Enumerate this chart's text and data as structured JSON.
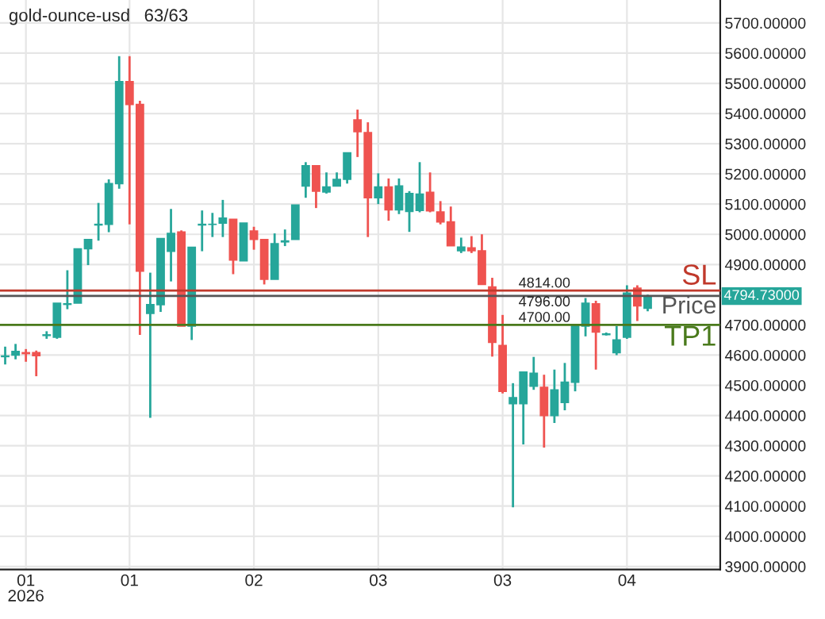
{
  "chart_data": {
    "type": "candlestick",
    "title": "gold-ounce-usd",
    "subtitle": "63/63",
    "categories": [
      null,
      null,
      "01\n2026",
      null,
      null,
      null,
      null,
      null,
      null,
      null,
      null,
      null,
      "01",
      null,
      null,
      null,
      null,
      null,
      null,
      null,
      null,
      null,
      null,
      null,
      "02",
      null,
      null,
      null,
      null,
      null,
      null,
      null,
      null,
      null,
      null,
      null,
      "03",
      null,
      null,
      null,
      null,
      null,
      null,
      null,
      null,
      null,
      null,
      null,
      "03",
      null,
      null,
      null,
      null,
      null,
      null,
      null,
      null,
      null,
      null,
      null,
      "04",
      null,
      null
    ],
    "ohlc": [
      [
        4595,
        4628,
        4569,
        4597
      ],
      [
        4600,
        4637,
        4586,
        4612
      ],
      [
        4608,
        4620,
        4578,
        4605
      ],
      [
        4608,
        4615,
        4530,
        4598
      ],
      [
        4665,
        4679,
        4654,
        4667
      ],
      [
        4659,
        4772,
        4654,
        4772
      ],
      [
        4768,
        4881,
        4752,
        4770
      ],
      [
        4772,
        4952,
        4772,
        4952
      ],
      [
        4952,
        4983,
        4898,
        4983
      ],
      [
        5031,
        5104,
        4979,
        5033
      ],
      [
        5033,
        5182,
        5007,
        5168
      ],
      [
        5168,
        5590,
        5151,
        5506
      ],
      [
        5506,
        5590,
        5033,
        5430
      ],
      [
        5430,
        5442,
        4667,
        4878
      ],
      [
        4738,
        4873,
        4392,
        4767
      ],
      [
        4767,
        4986,
        4743,
        4986
      ],
      [
        4944,
        5084,
        4844,
        5003
      ],
      [
        5008,
        5013,
        4696,
        4696
      ],
      [
        4696,
        4957,
        4650,
        4957
      ],
      [
        5031,
        5079,
        4944,
        5033
      ],
      [
        5033,
        5071,
        4991,
        5033
      ],
      [
        5037,
        5114,
        4991,
        5054
      ],
      [
        5050,
        5050,
        4868,
        4915
      ],
      [
        4912,
        5037,
        4912,
        5037
      ],
      [
        5011,
        5025,
        4949,
        4983
      ],
      [
        4983,
        4983,
        4834,
        4851
      ],
      [
        4851,
        5003,
        4851,
        4969
      ],
      [
        4975,
        5016,
        4961,
        4978
      ],
      [
        4983,
        5097,
        4983,
        5097
      ],
      [
        5160,
        5239,
        5121,
        5227
      ],
      [
        5227,
        5227,
        5087,
        5143
      ],
      [
        5140,
        5205,
        5135,
        5157
      ],
      [
        5160,
        5205,
        5160,
        5182
      ],
      [
        5182,
        5270,
        5168,
        5270
      ],
      [
        5379,
        5413,
        5256,
        5340
      ],
      [
        5337,
        5371,
        4991,
        5121
      ],
      [
        5121,
        5202,
        5100,
        5157
      ],
      [
        5157,
        5185,
        5045,
        5081
      ],
      [
        5081,
        5185,
        5067,
        5160
      ],
      [
        5076,
        5143,
        5008,
        5135
      ],
      [
        5079,
        5239,
        5073,
        5133
      ],
      [
        5139,
        5205,
        5073,
        5078
      ],
      [
        5074,
        5110,
        5033,
        5041
      ],
      [
        5041,
        5092,
        4962,
        4962
      ],
      [
        4946,
        4989,
        4938,
        4958
      ],
      [
        4955,
        4994,
        4938,
        4946
      ],
      [
        4945,
        5000,
        4834,
        4834
      ],
      [
        4826,
        4856,
        4595,
        4642
      ],
      [
        4632,
        4733,
        4473,
        4480
      ],
      [
        4439,
        4507,
        4096,
        4459
      ],
      [
        4439,
        4544,
        4304,
        4544
      ],
      [
        4497,
        4594,
        4485,
        4540
      ],
      [
        4493,
        4535,
        4294,
        4400
      ],
      [
        4400,
        4552,
        4375,
        4485
      ],
      [
        4443,
        4574,
        4417,
        4510
      ],
      [
        4510,
        4696,
        4480,
        4696
      ],
      [
        4696,
        4789,
        4662,
        4772
      ],
      [
        4770,
        4780,
        4552,
        4676
      ],
      [
        4668,
        4675,
        4665,
        4670
      ],
      [
        4608,
        4696,
        4600,
        4650
      ],
      [
        4659,
        4831,
        4654,
        4805
      ],
      [
        4822,
        4831,
        4713,
        4763
      ],
      [
        4755,
        4800,
        4745,
        4795
      ]
    ],
    "ylim": [
      3890,
      5776
    ],
    "yticks": [
      {
        "value": 3900,
        "label": "3900.00000"
      },
      {
        "value": 4000,
        "label": "4000.00000"
      },
      {
        "value": 4100,
        "label": "4100.00000"
      },
      {
        "value": 4200,
        "label": "4200.00000"
      },
      {
        "value": 4300,
        "label": "4300.00000"
      },
      {
        "value": 4400,
        "label": "4400.00000"
      },
      {
        "value": 4500,
        "label": "4500.00000"
      },
      {
        "value": 4600,
        "label": "4600.00000"
      },
      {
        "value": 4700,
        "label": "4700.00000"
      },
      {
        "value": 4900,
        "label": "4900.00000"
      },
      {
        "value": 5000,
        "label": "5000.00000"
      },
      {
        "value": 5100,
        "label": "5100.00000"
      },
      {
        "value": 5200,
        "label": "5200.00000"
      },
      {
        "value": 5300,
        "label": "5300.00000"
      },
      {
        "value": 5400,
        "label": "5400.00000"
      },
      {
        "value": 5500,
        "label": "5500.00000"
      },
      {
        "value": 5600,
        "label": "5600.00000"
      },
      {
        "value": 5700,
        "label": "5700.00000"
      }
    ],
    "ref_lines": [
      {
        "axis": "y",
        "value": 4814,
        "label": "SL",
        "color": "#c0392b"
      },
      {
        "axis": "y",
        "value": 4796,
        "label": "Price",
        "color": "#555555"
      },
      {
        "axis": "y",
        "value": 4700,
        "label": "TP1",
        "color": "#4a7a1c"
      }
    ],
    "annotations": [
      {
        "text": "4814.00",
        "y": 4814
      },
      {
        "text": "4796.00",
        "y": 4796
      },
      {
        "text": "4700.00",
        "y": 4700
      },
      "4794.73000"
    ],
    "grid": true
  }
}
